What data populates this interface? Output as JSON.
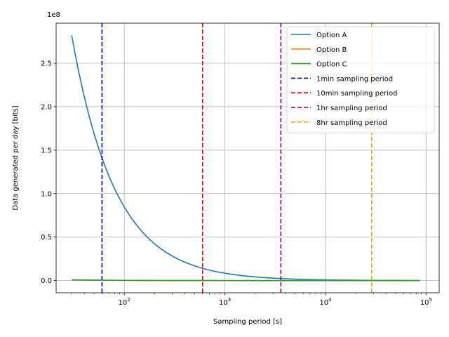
{
  "chart_data": {
    "type": "line",
    "xlabel": "Sampling period [s]",
    "ylabel": "Data generated per day [bits]",
    "xscale": "log",
    "xlim": [
      21,
      135000
    ],
    "ylim": [
      -14000000,
      296000000
    ],
    "y_offset_label": "1e8",
    "grid": true,
    "legend_position": "top-right",
    "x_ticks": [
      {
        "value": 100,
        "base": "10",
        "exp": "2"
      },
      {
        "value": 1000,
        "base": "10",
        "exp": "3"
      },
      {
        "value": 10000,
        "base": "10",
        "exp": "4"
      },
      {
        "value": 100000,
        "base": "10",
        "exp": "5"
      }
    ],
    "y_ticks": [
      {
        "value": 0,
        "label": "0.0"
      },
      {
        "value": 50000000,
        "label": "0.5"
      },
      {
        "value": 100000000,
        "label": "1.0"
      },
      {
        "value": 150000000,
        "label": "1.5"
      },
      {
        "value": 200000000,
        "label": "2.0"
      },
      {
        "value": 250000000,
        "label": "2.5"
      }
    ],
    "series": [
      {
        "name": "Option A",
        "color": "#1f77b4",
        "style": "solid",
        "x": [
          30,
          40,
          50,
          60,
          80,
          100,
          150,
          200,
          300,
          400,
          600,
          1000,
          2000,
          3600,
          10000,
          28800,
          86400
        ],
        "y": [
          282000000,
          211500000,
          169200000,
          141000000,
          105750000,
          84600000,
          56400000,
          42300000,
          28200000,
          21150000,
          14100000,
          8460000,
          4230000,
          2350000,
          846000,
          293750,
          97917
        ]
      },
      {
        "name": "Option B",
        "color": "#ff7f0e",
        "style": "solid",
        "x": [
          30,
          60,
          100,
          600,
          3600,
          28800,
          86400
        ],
        "y": [
          800000,
          400000,
          240000,
          40000,
          6667,
          833,
          278
        ]
      },
      {
        "name": "Option C",
        "color": "#2ca02c",
        "style": "solid",
        "x": [
          30,
          60,
          100,
          600,
          3600,
          28800,
          86400
        ],
        "y": [
          900000,
          450000,
          270000,
          45000,
          7500,
          938,
          313
        ]
      }
    ],
    "vlines": [
      {
        "name": "1min sampling period",
        "x": 60,
        "color": "#0000cc"
      },
      {
        "name": "10min sampling period",
        "x": 600,
        "color": "#ff0000"
      },
      {
        "name": "1hr sampling period",
        "x": 3600,
        "color": "#800080"
      },
      {
        "name": "8hr sampling period",
        "x": 28800,
        "color": "#ffa500"
      }
    ]
  }
}
